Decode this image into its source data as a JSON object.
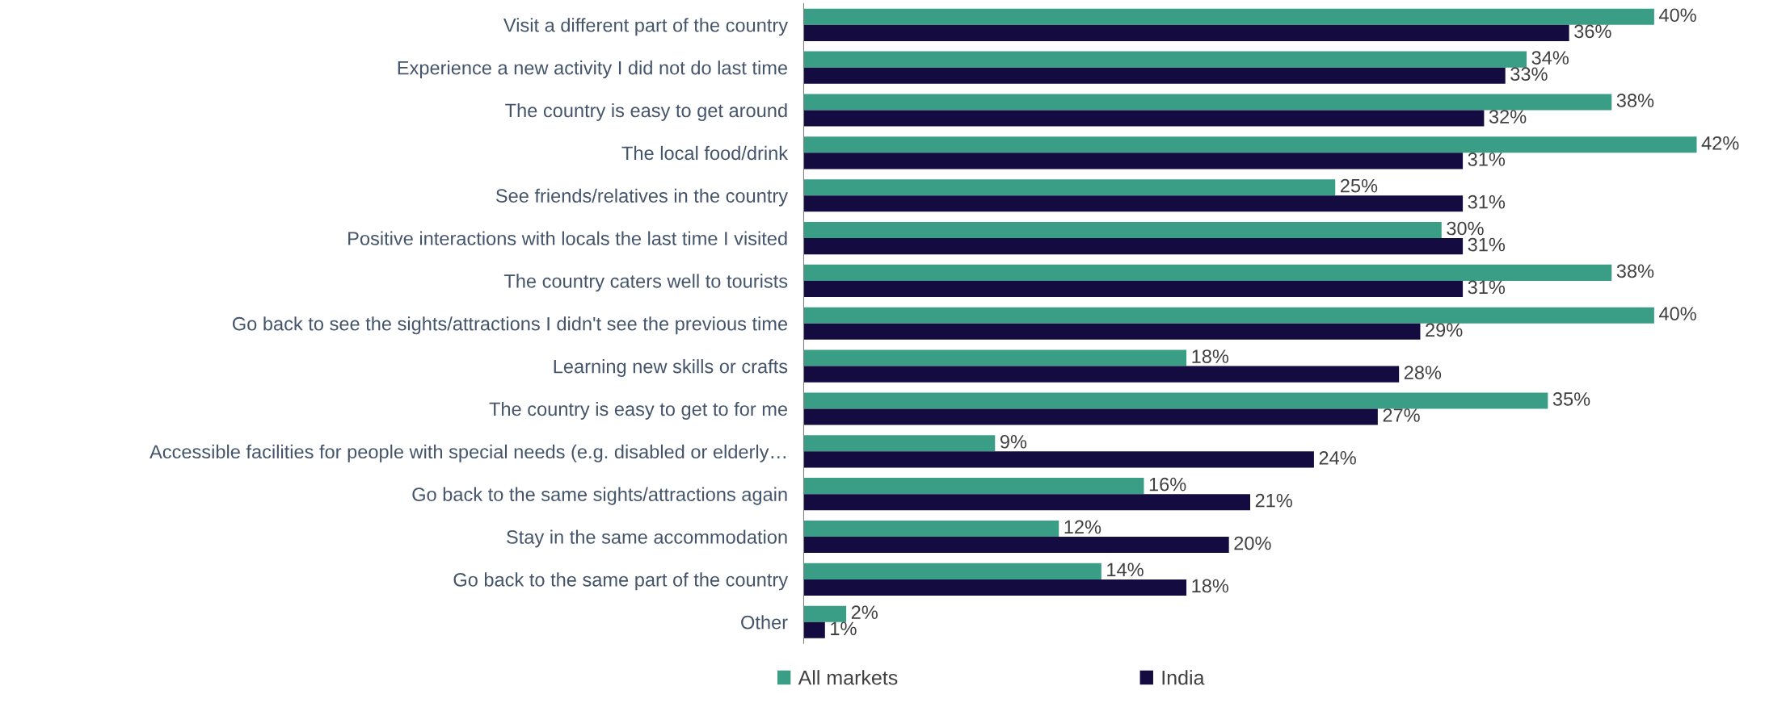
{
  "chart_data": {
    "type": "bar",
    "orientation": "horizontal",
    "categories": [
      "Visit a different part of the country",
      "Experience a new activity I did not do last time",
      "The country is easy to get around",
      "The local food/drink",
      "See friends/relatives in the country",
      "Positive interactions with locals the last time I visited",
      "The country caters well to tourists",
      "Go back to see the sights/attractions I didn't see the previous time",
      "Learning new skills or crafts",
      "The country is easy to get to for me",
      "Accessible facilities for people with special needs (e.g. disabled or elderly…",
      "Go back to the same sights/attractions again",
      "Stay in the same accommodation",
      "Go back to the same part of the country",
      "Other"
    ],
    "series": [
      {
        "name": "All markets",
        "color": "#3a9e87",
        "values": [
          40,
          34,
          38,
          42,
          25,
          30,
          38,
          40,
          18,
          35,
          9,
          16,
          12,
          14,
          2
        ],
        "value_labels": [
          "40%",
          "34%",
          "38%",
          "42%",
          "25%",
          "30%",
          "38%",
          "40%",
          "18%",
          "35%",
          "9%",
          "16%",
          "12%",
          "14%",
          "2%"
        ]
      },
      {
        "name": "India",
        "color": "#140c40",
        "values": [
          36,
          33,
          32,
          31,
          31,
          31,
          31,
          29,
          28,
          27,
          24,
          21,
          20,
          18,
          1
        ],
        "value_labels": [
          "36%",
          "33%",
          "32%",
          "31%",
          "31%",
          "31%",
          "31%",
          "29%",
          "28%",
          "27%",
          "24%",
          "21%",
          "20%",
          "18%",
          "1%"
        ]
      }
    ],
    "legend": "bottom",
    "grid": false
  }
}
